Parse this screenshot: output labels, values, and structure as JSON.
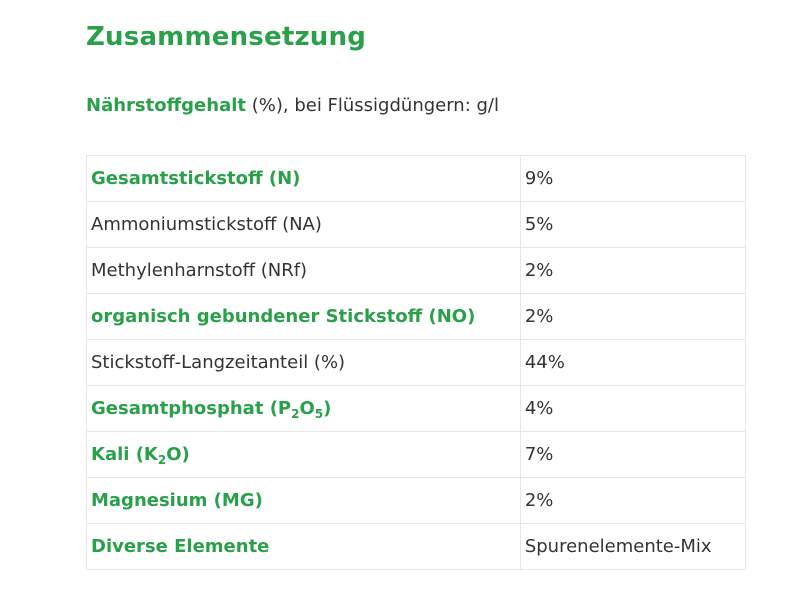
{
  "heading": "Zusammensetzung",
  "intro": {
    "strong": "Nährstoffgehalt",
    "rest": " (%), bei Flüssigdüngern: g/l"
  },
  "rows": [
    {
      "label": "Gesamtstickstoff (N)",
      "value": "9%"
    },
    {
      "label": "Ammoniumstickstoff (NA)",
      "value": "5%"
    },
    {
      "label": "Methylenharnstoff (NRf)",
      "value": "2%"
    },
    {
      "label": "organisch gebundener Stickstoff (NO)",
      "value": "2%"
    },
    {
      "label": "Stickstoff-Langzeitanteil (%)",
      "value": "44%"
    },
    {
      "label_parts": [
        "Gesamtphosphat (P",
        "2",
        "O",
        "5",
        ")"
      ],
      "value": "4%"
    },
    {
      "label_parts": [
        "Kali (K",
        "2",
        "O)"
      ],
      "value": "7%"
    },
    {
      "label": "Magnesium (MG)",
      "value": "2%"
    },
    {
      "label": "Diverse Elemente",
      "value": "Spurenelemente-Mix"
    }
  ],
  "colors": {
    "accent_green": "#2aa04a",
    "text_dark": "#333333",
    "grid": "#e6e6e6"
  }
}
